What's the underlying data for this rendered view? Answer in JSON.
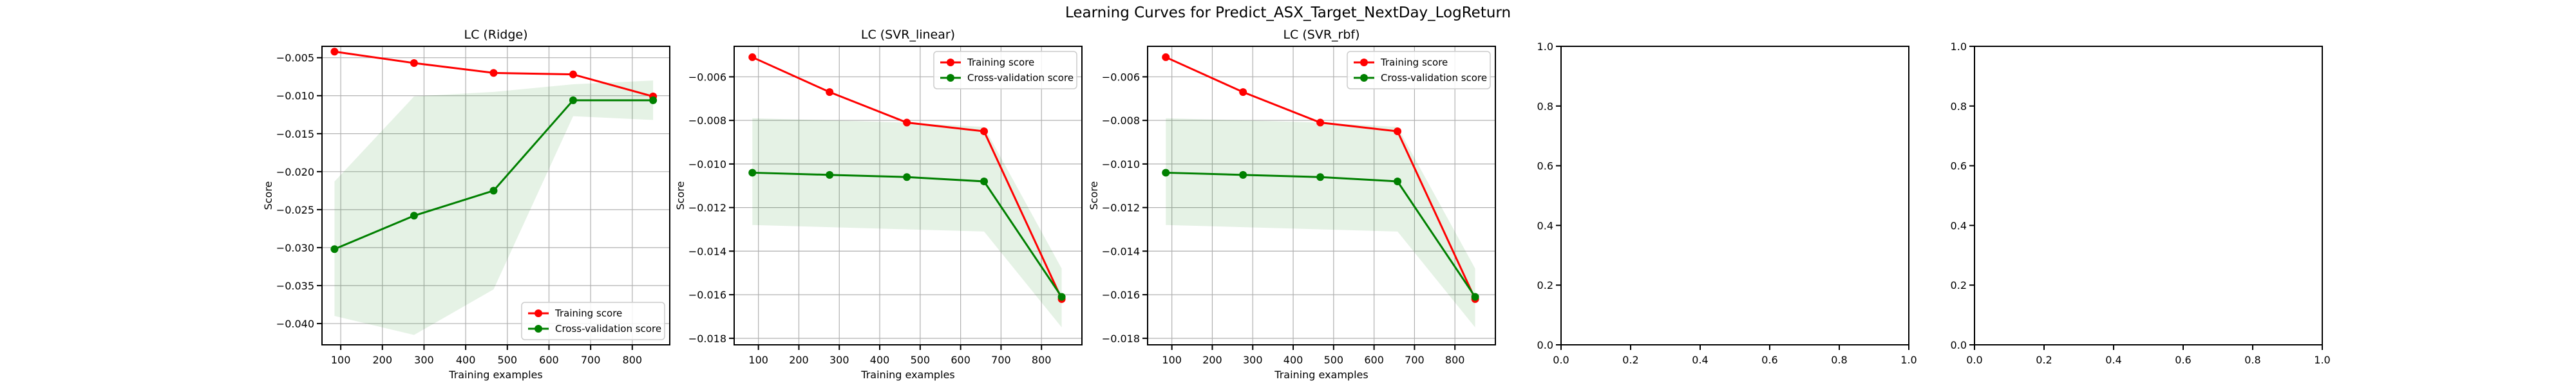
{
  "figure": {
    "suptitle": "Learning Curves for Predict_ASX_Target_NextDay_LogReturn"
  },
  "chart_data": [
    {
      "type": "line",
      "title": "LC (Ridge)",
      "xlabel": "Training examples",
      "ylabel": "Score",
      "xlim": [
        55,
        890
      ],
      "ylim": [
        -0.0428,
        -0.0035
      ],
      "xticks": [
        100,
        200,
        300,
        400,
        500,
        600,
        700,
        800
      ],
      "yticks": [
        -0.04,
        -0.035,
        -0.03,
        -0.025,
        -0.02,
        -0.015,
        -0.01,
        -0.005
      ],
      "ytick_decimals": 3,
      "grid": true,
      "legend": "bottom-right",
      "x": [
        85,
        276,
        467,
        658,
        850
      ],
      "series": [
        {
          "name": "Training score",
          "color": "#ff0000",
          "values": [
            -0.0042,
            -0.0057,
            -0.007,
            -0.0072,
            -0.0101
          ],
          "band_lower": [
            -0.0042,
            -0.0057,
            -0.007,
            -0.0072,
            -0.0101
          ],
          "band_upper": [
            -0.0042,
            -0.0057,
            -0.007,
            -0.0072,
            -0.0101
          ]
        },
        {
          "name": "Cross-validation score",
          "color": "#008000",
          "values": [
            -0.0302,
            -0.0258,
            -0.0225,
            -0.0106,
            -0.0106
          ],
          "band_lower": [
            -0.039,
            -0.0415,
            -0.0355,
            -0.0127,
            -0.0132
          ],
          "band_upper": [
            -0.0213,
            -0.0101,
            -0.0095,
            -0.0085,
            -0.008
          ]
        }
      ]
    },
    {
      "type": "line",
      "title": "LC (SVR_linear)",
      "xlabel": "Training examples",
      "ylabel": "Score",
      "xlim": [
        40,
        900
      ],
      "ylim": [
        -0.0183,
        -0.0046
      ],
      "xticks": [
        100,
        200,
        300,
        400,
        500,
        600,
        700,
        800
      ],
      "yticks": [
        -0.018,
        -0.016,
        -0.014,
        -0.012,
        -0.01,
        -0.008,
        -0.006
      ],
      "ytick_decimals": 3,
      "grid": true,
      "legend": "top-right",
      "x": [
        85,
        276,
        467,
        658,
        850
      ],
      "series": [
        {
          "name": "Training score",
          "color": "#ff0000",
          "values": [
            -0.0051,
            -0.0067,
            -0.0081,
            -0.0085,
            -0.0162
          ],
          "band_lower": [
            -0.0051,
            -0.0067,
            -0.0081,
            -0.0085,
            -0.0162
          ],
          "band_upper": [
            -0.0051,
            -0.0067,
            -0.0081,
            -0.0085,
            -0.0162
          ]
        },
        {
          "name": "Cross-validation score",
          "color": "#008000",
          "values": [
            -0.0104,
            -0.0105,
            -0.0106,
            -0.0108,
            -0.0161
          ],
          "band_lower": [
            -0.0128,
            -0.0129,
            -0.013,
            -0.0131,
            -0.0175
          ],
          "band_upper": [
            -0.0079,
            -0.008,
            -0.0081,
            -0.0083,
            -0.0148
          ]
        }
      ]
    },
    {
      "type": "line",
      "title": "LC (SVR_rbf)",
      "xlabel": "Training examples",
      "ylabel": "Score",
      "xlim": [
        40,
        900
      ],
      "ylim": [
        -0.0183,
        -0.0046
      ],
      "xticks": [
        100,
        200,
        300,
        400,
        500,
        600,
        700,
        800
      ],
      "yticks": [
        -0.018,
        -0.016,
        -0.014,
        -0.012,
        -0.01,
        -0.008,
        -0.006
      ],
      "ytick_decimals": 3,
      "grid": true,
      "legend": "top-right",
      "x": [
        85,
        276,
        467,
        658,
        850
      ],
      "series": [
        {
          "name": "Training score",
          "color": "#ff0000",
          "values": [
            -0.0051,
            -0.0067,
            -0.0081,
            -0.0085,
            -0.0162
          ],
          "band_lower": [
            -0.0051,
            -0.0067,
            -0.0081,
            -0.0085,
            -0.0162
          ],
          "band_upper": [
            -0.0051,
            -0.0067,
            -0.0081,
            -0.0085,
            -0.0162
          ]
        },
        {
          "name": "Cross-validation score",
          "color": "#008000",
          "values": [
            -0.0104,
            -0.0105,
            -0.0106,
            -0.0108,
            -0.0161
          ],
          "band_lower": [
            -0.0128,
            -0.0129,
            -0.013,
            -0.0131,
            -0.0175
          ],
          "band_upper": [
            -0.0079,
            -0.008,
            -0.0081,
            -0.0083,
            -0.0148
          ]
        }
      ]
    },
    {
      "type": "line",
      "title": "",
      "xlabel": "",
      "ylabel": "",
      "xlim": [
        0,
        1
      ],
      "ylim": [
        0,
        1
      ],
      "xticks": [
        0.0,
        0.2,
        0.4,
        0.6,
        0.8,
        1.0
      ],
      "yticks": [
        0.0,
        0.2,
        0.4,
        0.6,
        0.8,
        1.0
      ],
      "ytick_decimals": 1,
      "grid": false,
      "x": [],
      "series": []
    },
    {
      "type": "line",
      "title": "",
      "xlabel": "",
      "ylabel": "",
      "xlim": [
        0,
        1
      ],
      "ylim": [
        0,
        1
      ],
      "xticks": [
        0.0,
        0.2,
        0.4,
        0.6,
        0.8,
        1.0
      ],
      "yticks": [
        0.0,
        0.2,
        0.4,
        0.6,
        0.8,
        1.0
      ],
      "ytick_decimals": 1,
      "grid": false,
      "x": [],
      "series": []
    }
  ]
}
